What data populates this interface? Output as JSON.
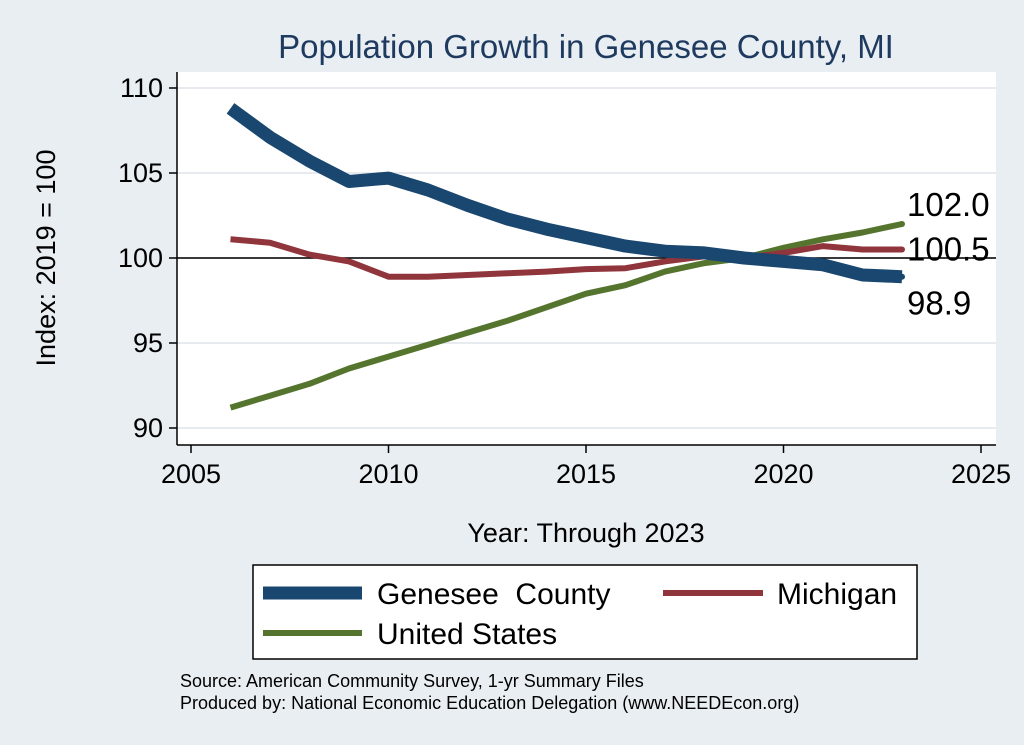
{
  "chart_data": {
    "type": "line",
    "title": "Population Growth in Genesee County, MI",
    "xlabel": "Year: Through 2023",
    "ylabel": "Index: 2019 = 100",
    "xlim": [
      2005,
      2025
    ],
    "ylim": [
      90,
      110
    ],
    "xticks": [
      2005,
      2010,
      2015,
      2020,
      2025
    ],
    "yticks": [
      90,
      95,
      100,
      105,
      110
    ],
    "reference_line": 100,
    "x": [
      2006,
      2007,
      2008,
      2009,
      2010,
      2011,
      2012,
      2013,
      2014,
      2015,
      2016,
      2017,
      2018,
      2019,
      2020,
      2021,
      2022,
      2023
    ],
    "series": [
      {
        "name": "Genesee  County",
        "color": "#1a476f",
        "values": [
          108.8,
          107.1,
          105.7,
          104.5,
          104.7,
          104.0,
          103.1,
          102.3,
          101.7,
          101.2,
          100.7,
          100.4,
          100.3,
          100.0,
          99.8,
          99.6,
          99.0,
          98.9
        ],
        "end_label": "98.9"
      },
      {
        "name": "Michigan",
        "color": "#90353b",
        "values": [
          101.1,
          100.9,
          100.2,
          99.8,
          98.9,
          98.9,
          99.0,
          99.1,
          99.2,
          99.35,
          99.4,
          99.8,
          100.1,
          100.0,
          100.3,
          100.7,
          100.5,
          100.5
        ],
        "end_label": "100.5"
      },
      {
        "name": "United States",
        "color": "#55752f",
        "values": [
          91.2,
          91.9,
          92.6,
          93.5,
          94.2,
          94.9,
          95.6,
          96.3,
          97.1,
          97.9,
          98.4,
          99.2,
          99.7,
          100.0,
          100.6,
          101.1,
          101.5,
          102.0
        ],
        "end_label": "102.0"
      }
    ]
  },
  "footer": {
    "source": "Source: American Community Survey, 1-yr Summary Files",
    "produced": "Produced by: National Economic Education Delegation (www.NEEDEcon.org)"
  }
}
